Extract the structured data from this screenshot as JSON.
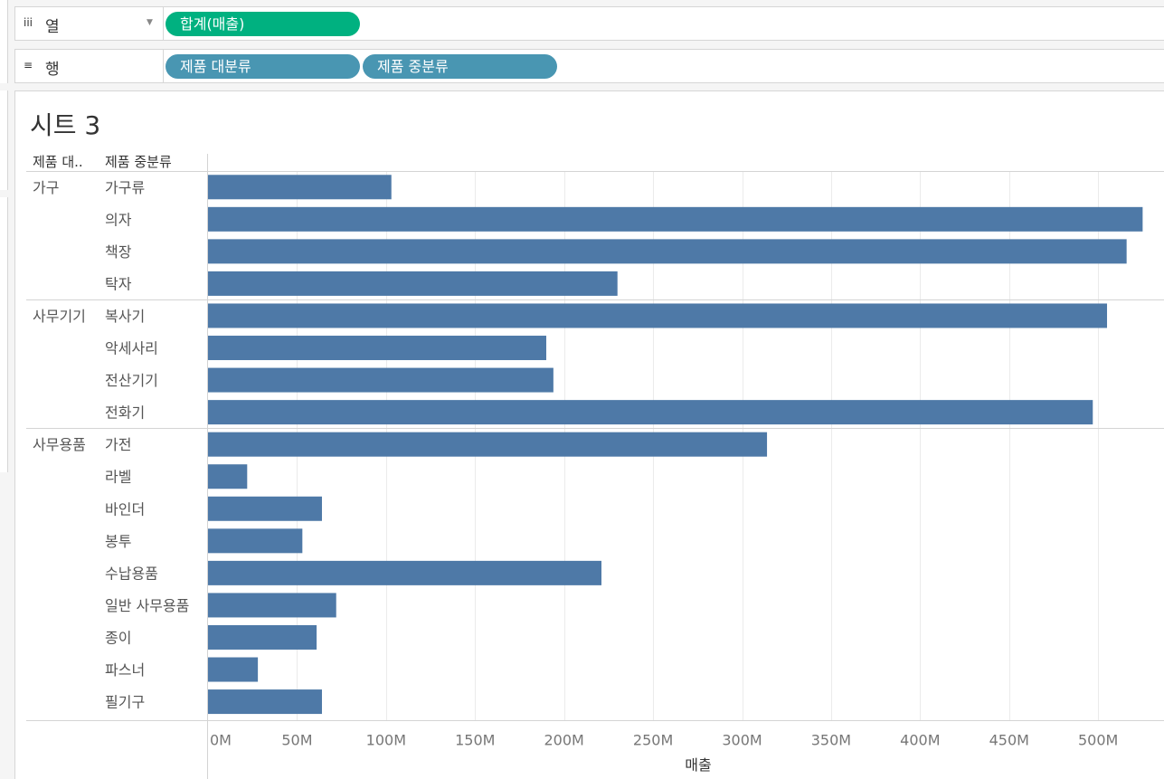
{
  "shelves": {
    "columns": {
      "icon": "iii",
      "label": "열",
      "pills": [
        "합계(매출)"
      ]
    },
    "rows": {
      "icon": "≡",
      "label": "행",
      "pills": [
        "제품 대분류",
        "제품 중분류"
      ]
    }
  },
  "sheet_title": "시트 3",
  "colors": {
    "bar": "#4e79a7",
    "pill_measure": "#00b180",
    "pill_dimension": "#4996b2"
  },
  "chart_data": {
    "type": "bar",
    "orientation": "horizontal",
    "row_headers": [
      "제품 대..",
      "제품 중분류"
    ],
    "groups": [
      {
        "name": "가구",
        "categories": [
          "가구류",
          "의자",
          "책장",
          "탁자"
        ],
        "values": [
          103,
          525,
          516,
          230
        ]
      },
      {
        "name": "사무기기",
        "categories": [
          "복사기",
          "악세사리",
          "전산기기",
          "전화기"
        ],
        "values": [
          505,
          190,
          194,
          497
        ]
      },
      {
        "name": "사무용품",
        "categories": [
          "가전",
          "라벨",
          "바인더",
          "봉투",
          "수납용품",
          "일반 사무용품",
          "종이",
          "파스너",
          "필기구"
        ],
        "values": [
          314,
          22,
          64,
          53,
          221,
          72,
          61,
          28,
          64
        ]
      }
    ],
    "unit": "M",
    "xlabel": "매출",
    "xlim": [
      0,
      537
    ],
    "xticks": [
      0,
      50,
      100,
      150,
      200,
      250,
      300,
      350,
      400,
      450,
      500
    ],
    "xtick_labels": [
      "0M",
      "50M",
      "100M",
      "150M",
      "200M",
      "250M",
      "300M",
      "350M",
      "400M",
      "450M",
      "500M"
    ],
    "grid": "vertical"
  }
}
